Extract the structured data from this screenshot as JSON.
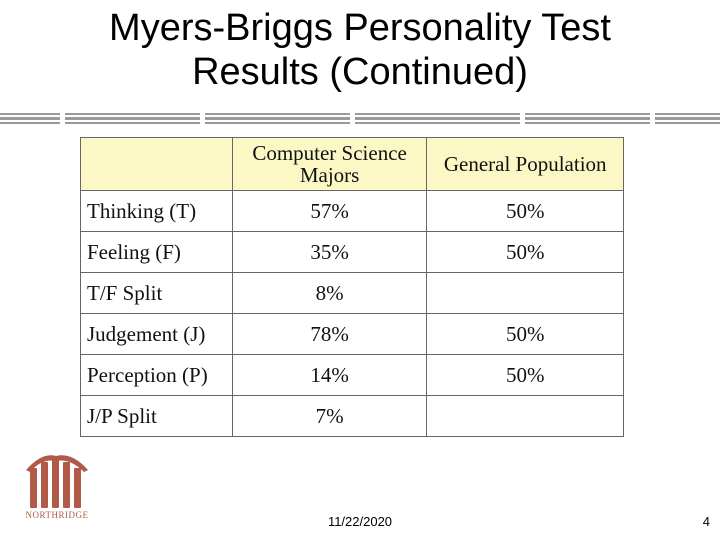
{
  "slide": {
    "title_line1": "Myers-Briggs Personality Test",
    "title_line2": "Results (Continued)"
  },
  "table": {
    "headers": [
      "",
      "Computer Science Majors",
      "General Population"
    ],
    "rows": [
      {
        "label": "Thinking (T)",
        "cs": "57%",
        "general": "50%"
      },
      {
        "label": "Feeling (F)",
        "cs": "35%",
        "general": "50%"
      },
      {
        "label": "T/F Split",
        "cs": "8%",
        "general": ""
      },
      {
        "label": "Judgement (J)",
        "cs": "78%",
        "general": "50%"
      },
      {
        "label": "Perception (P)",
        "cs": "14%",
        "general": "50%"
      },
      {
        "label": "J/P Split",
        "cs": "7%",
        "general": ""
      }
    ],
    "header_color": "#fbf8c6"
  },
  "footer": {
    "date": "11/22/2020",
    "page_number": "4",
    "logo_text": "NORTHRIDGE",
    "logo_color": "#b15a48"
  }
}
